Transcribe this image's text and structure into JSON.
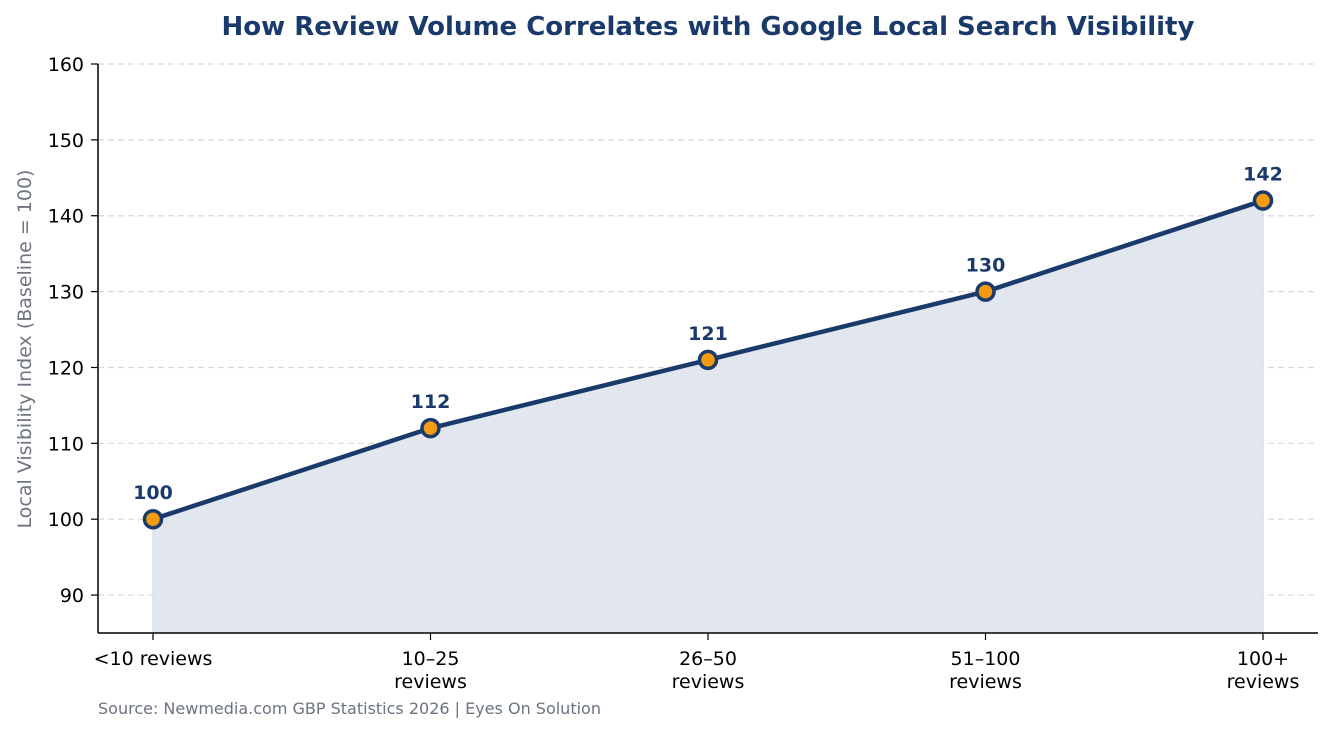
{
  "chart_data": {
    "type": "area",
    "title": "How Review Volume Correlates with Google Local Search Visibility",
    "xlabel": "",
    "ylabel": "Local Visibility Index (Baseline = 100)",
    "categories": [
      [
        "<10 reviews"
      ],
      [
        "10–25",
        "reviews"
      ],
      [
        "26–50",
        "reviews"
      ],
      [
        "51–100",
        "reviews"
      ],
      [
        "100+",
        "reviews"
      ]
    ],
    "values": [
      100,
      112,
      121,
      130,
      142
    ],
    "data_labels": [
      "100",
      "112",
      "121",
      "130",
      "142"
    ],
    "yticks": [
      "90",
      "100",
      "110",
      "120",
      "130",
      "140",
      "150",
      "160"
    ],
    "ylim": [
      85,
      160
    ],
    "grid": "horizontal-dashed",
    "colors": {
      "line": "#1a3a6b",
      "marker_fill": "#f39c12",
      "area_fill": "#e2e6ee",
      "grid": "#d9d9d9"
    }
  },
  "footer": {
    "source": "Source: Newmedia.com GBP Statistics 2026 | Eyes On Solution"
  }
}
